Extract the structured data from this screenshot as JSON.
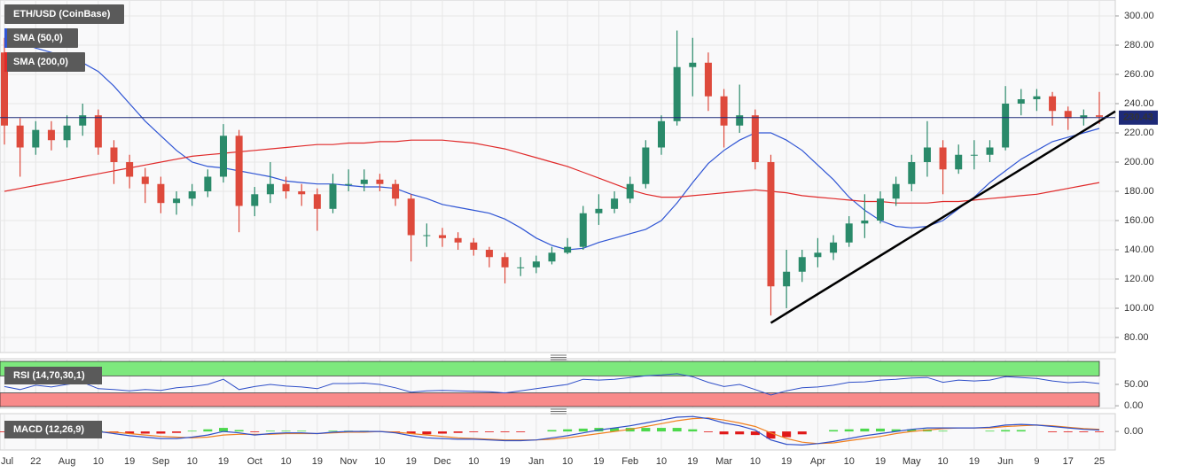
{
  "chart_data": [
    {
      "type": "candlestick",
      "title": "ETH/USD (CoinBase)",
      "categories": [
        "Jul",
        null,
        "22",
        null,
        "Aug",
        null,
        "10",
        null,
        "19",
        null,
        "Sep",
        null,
        "10",
        null,
        "19",
        null,
        "Oct",
        null,
        "10",
        null,
        "19",
        null,
        "Nov",
        null,
        "10",
        null,
        "19",
        null,
        "Dec",
        null,
        "10",
        null,
        "19",
        null,
        "Jan",
        null,
        "10",
        null,
        "19",
        null,
        "Feb",
        null,
        "10",
        null,
        "19",
        null,
        "Mar",
        null,
        "10",
        null,
        "19",
        null,
        "Apr",
        null,
        "10",
        null,
        "19",
        null,
        "May",
        null,
        "10",
        null,
        "19",
        null,
        "Jun",
        null,
        "9",
        null,
        "17",
        null,
        "25"
      ],
      "open": [
        275,
        225,
        210,
        222,
        215,
        225,
        232,
        210,
        200,
        190,
        185,
        172,
        175,
        180,
        190,
        218,
        170,
        178,
        185,
        180,
        178,
        168,
        185,
        185,
        188,
        185,
        175,
        150,
        150,
        148,
        145,
        140,
        135,
        128,
        128,
        132,
        138,
        142,
        165,
        168,
        175,
        185,
        210,
        228,
        265,
        268,
        245,
        225,
        232,
        200,
        115,
        125,
        135,
        138,
        145,
        158,
        160,
        175,
        185,
        200,
        210,
        195,
        205,
        205,
        210,
        240,
        243,
        245,
        235,
        230,
        232
      ],
      "high": [
        285,
        230,
        228,
        228,
        232,
        240,
        236,
        215,
        205,
        196,
        190,
        180,
        185,
        195,
        226,
        222,
        183,
        200,
        190,
        185,
        182,
        192,
        195,
        195,
        192,
        188,
        178,
        158,
        155,
        152,
        148,
        142,
        138,
        135,
        136,
        142,
        148,
        170,
        178,
        180,
        190,
        215,
        232,
        290,
        285,
        275,
        250,
        253,
        236,
        205,
        140,
        140,
        148,
        150,
        163,
        178,
        180,
        190,
        205,
        228,
        215,
        212,
        215,
        215,
        252,
        250,
        250,
        248,
        238,
        236,
        248
      ],
      "low": [
        212,
        190,
        205,
        208,
        210,
        218,
        205,
        185,
        182,
        172,
        165,
        164,
        170,
        176,
        186,
        152,
        163,
        172,
        175,
        170,
        153,
        165,
        180,
        180,
        180,
        170,
        132,
        142,
        142,
        140,
        136,
        128,
        117,
        122,
        124,
        130,
        137,
        140,
        157,
        165,
        172,
        182,
        205,
        225,
        245,
        235,
        210,
        220,
        195,
        95,
        100,
        118,
        128,
        133,
        142,
        148,
        158,
        170,
        180,
        190,
        178,
        192,
        195,
        200,
        208,
        232,
        235,
        225,
        222,
        225,
        226
      ],
      "close": [
        225,
        210,
        222,
        215,
        225,
        232,
        210,
        200,
        190,
        185,
        172,
        175,
        180,
        190,
        218,
        170,
        178,
        185,
        180,
        178,
        168,
        185,
        185,
        188,
        185,
        175,
        150,
        150,
        148,
        145,
        140,
        135,
        128,
        128,
        132,
        138,
        142,
        165,
        168,
        175,
        185,
        210,
        228,
        265,
        268,
        245,
        225,
        232,
        200,
        115,
        125,
        135,
        138,
        145,
        158,
        160,
        175,
        185,
        200,
        210,
        195,
        205,
        205,
        210,
        240,
        243,
        245,
        235,
        230,
        232,
        231
      ],
      "up_color": "#2a8a6a",
      "down_color": "#de4a3c",
      "lines": [
        {
          "name": "SMA (50,0)",
          "color": "#2f55d4",
          "values": [
            283,
            282,
            278,
            275,
            272,
            268,
            262,
            252,
            240,
            228,
            218,
            208,
            200,
            197,
            196,
            194,
            192,
            190,
            187,
            186,
            185,
            185,
            184,
            183,
            183,
            182,
            178,
            175,
            171,
            169,
            167,
            165,
            161,
            155,
            148,
            143,
            140,
            141,
            145,
            148,
            151,
            154,
            160,
            172,
            186,
            199,
            208,
            215,
            220,
            220,
            215,
            208,
            198,
            188,
            176,
            167,
            160,
            156,
            155,
            156,
            160,
            168,
            176,
            186,
            194,
            202,
            208,
            214,
            217,
            220,
            223
          ]
        },
        {
          "name": "SMA (200,0)",
          "color": "#e02a2a",
          "values": [
            180,
            182,
            184,
            186,
            188,
            190,
            192,
            194,
            196,
            198,
            200,
            202,
            204,
            205,
            206,
            207,
            208,
            209,
            210,
            211,
            212,
            212,
            213,
            213,
            214,
            214,
            215,
            215,
            215,
            214,
            213,
            211,
            209,
            206,
            203,
            200,
            197,
            193,
            189,
            185,
            181,
            178,
            176,
            176,
            177,
            178,
            179,
            180,
            181,
            180,
            179,
            177,
            176,
            175,
            174,
            173,
            173,
            172,
            172,
            172,
            173,
            173,
            174,
            175,
            176,
            177,
            178,
            180,
            182,
            184,
            186
          ]
        }
      ],
      "last_price": 230.43,
      "last_price_color": "#1e2a78",
      "trendline": {
        "from": {
          "index": 49,
          "value": 90
        },
        "to": {
          "index": 70,
          "value": 228
        },
        "color": "#000000"
      },
      "ylim": [
        69.7,
        310.9
      ],
      "yticks": [
        {
          "value": 80,
          "label": "80.00"
        },
        {
          "value": 100,
          "label": "100.00"
        },
        {
          "value": 120,
          "label": "120.00"
        },
        {
          "value": 140,
          "label": "140.00"
        },
        {
          "value": 160,
          "label": "160.00"
        },
        {
          "value": 180,
          "label": "180.00"
        },
        {
          "value": 200,
          "label": "200.00"
        },
        {
          "value": 220,
          "label": "220.00"
        },
        {
          "value": 240,
          "label": "240.00"
        },
        {
          "value": 260,
          "label": "260.00"
        },
        {
          "value": 280,
          "label": "280.00"
        },
        {
          "value": 300,
          "label": "300.00"
        }
      ],
      "grid": true
    },
    {
      "type": "rsi",
      "title": "RSI (14,70,30,1)",
      "values": [
        45,
        38,
        48,
        44,
        50,
        55,
        40,
        38,
        35,
        38,
        36,
        42,
        45,
        50,
        62,
        38,
        45,
        50,
        46,
        44,
        40,
        52,
        52,
        53,
        50,
        42,
        32,
        35,
        36,
        35,
        34,
        33,
        30,
        35,
        40,
        45,
        50,
        62,
        60,
        62,
        66,
        70,
        72,
        75,
        68,
        55,
        45,
        50,
        38,
        25,
        35,
        42,
        44,
        48,
        55,
        56,
        60,
        62,
        65,
        66,
        55,
        60,
        58,
        60,
        68,
        66,
        64,
        58,
        54,
        56,
        52
      ],
      "color": "#2f4fc8",
      "overbought": 70,
      "oversold": 30,
      "overbought_color": "#7de87d",
      "oversold_color": "#f88a8a",
      "ylim": [
        -6,
        110
      ],
      "yticks": [
        {
          "value": 0,
          "label": "0.00"
        },
        {
          "value": 50,
          "label": "50.00"
        }
      ]
    },
    {
      "type": "macd",
      "title": "MACD (12,26,9)",
      "macd": {
        "color": "#2f4fc8",
        "values": [
          -2,
          -4,
          -4,
          -3,
          -1,
          1,
          0,
          -3,
          -6,
          -8,
          -10,
          -10,
          -8,
          -5,
          0,
          -2,
          -5,
          -3,
          -2,
          -2,
          -3,
          -1,
          0,
          0,
          0,
          -2,
          -6,
          -9,
          -10,
          -11,
          -11,
          -12,
          -13,
          -13,
          -12,
          -9,
          -6,
          -2,
          2,
          5,
          8,
          12,
          16,
          20,
          21,
          18,
          12,
          8,
          2,
          -12,
          -18,
          -19,
          -17,
          -14,
          -10,
          -6,
          -3,
          0,
          3,
          5,
          5,
          5,
          5,
          6,
          9,
          10,
          9,
          7,
          5,
          3,
          2
        ]
      },
      "signal": {
        "color": "#f08020",
        "values": [
          -1,
          -2,
          -3,
          -3,
          -3,
          -2,
          -1,
          -1,
          -3,
          -5,
          -7,
          -8,
          -9,
          -8,
          -5,
          -4,
          -4,
          -4,
          -3,
          -3,
          -3,
          -2,
          -1,
          -1,
          0,
          -1,
          -3,
          -5,
          -7,
          -9,
          -10,
          -11,
          -12,
          -12,
          -12,
          -11,
          -9,
          -6,
          -3,
          0,
          3,
          7,
          11,
          15,
          18,
          19,
          16,
          12,
          7,
          -2,
          -10,
          -15,
          -17,
          -16,
          -13,
          -10,
          -7,
          -3,
          0,
          2,
          4,
          5,
          5,
          5,
          7,
          8,
          9,
          8,
          6,
          4,
          3
        ]
      },
      "histogram": {
        "up_color": "#4cd84c",
        "down_color": "#e01818",
        "values": [
          -1,
          -2,
          -1,
          0,
          2,
          3,
          1,
          -2,
          -3,
          -3,
          -3,
          -2,
          1,
          3,
          5,
          2,
          -1,
          1,
          1,
          1,
          0,
          1,
          1,
          1,
          0,
          -1,
          -3,
          -4,
          -3,
          -2,
          -1,
          -1,
          -1,
          -1,
          0,
          2,
          3,
          4,
          5,
          5,
          5,
          5,
          5,
          5,
          3,
          -1,
          -4,
          -4,
          -5,
          -10,
          -8,
          -4,
          0,
          2,
          3,
          4,
          4,
          3,
          3,
          3,
          1,
          0,
          0,
          1,
          2,
          2,
          0,
          -1,
          -1,
          -1,
          -1
        ]
      },
      "ylim": [
        -26,
        25
      ],
      "yticks": [
        {
          "value": 0,
          "label": "0.00"
        }
      ]
    }
  ]
}
